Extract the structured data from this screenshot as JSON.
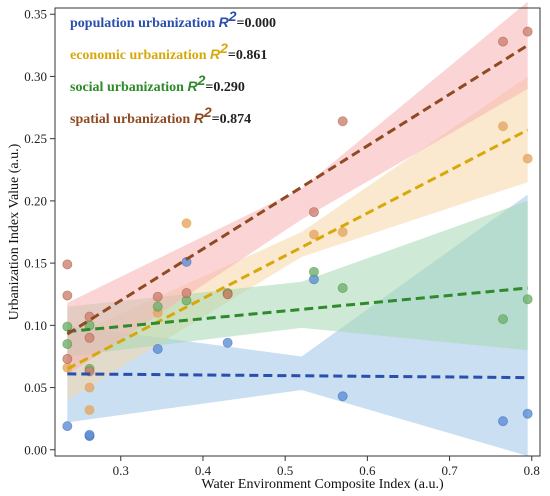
{
  "chart_data": {
    "type": "scatter",
    "title": "",
    "xlabel": "Water Environment Composite Index (a.u.)",
    "ylabel": "Urbanization Index Value (a.u.)",
    "xlim": [
      0.22,
      0.81
    ],
    "ylim": [
      -0.005,
      0.355
    ],
    "xticks": [
      "0.3",
      "0.4",
      "0.5",
      "0.6",
      "0.7",
      "0.8"
    ],
    "yticks": [
      "0.00",
      "0.05",
      "0.10",
      "0.15",
      "0.20",
      "0.25",
      "0.30",
      "0.35"
    ],
    "legend_position": "top-left",
    "series": [
      {
        "name": "population urbanization",
        "r2_label": "R",
        "r2_sup": "2",
        "r2_value": "=0.000",
        "color": "#2a4fae",
        "point_color": "#5b8fd6",
        "band_color": "#9ec5e8",
        "fit": [
          [
            0.235,
            0.061
          ],
          [
            0.795,
            0.058
          ]
        ],
        "band": {
          "x": [
            0.235,
            0.52,
            0.795
          ],
          "lower": [
            0.022,
            0.048,
            -0.005
          ],
          "upper": [
            0.1,
            0.075,
            0.205
          ]
        },
        "points": [
          [
            0.235,
            0.019
          ],
          [
            0.262,
            0.011
          ],
          [
            0.262,
            0.012
          ],
          [
            0.345,
            0.081
          ],
          [
            0.38,
            0.151
          ],
          [
            0.43,
            0.086
          ],
          [
            0.535,
            0.137
          ],
          [
            0.57,
            0.043
          ],
          [
            0.765,
            0.023
          ],
          [
            0.795,
            0.029
          ]
        ]
      },
      {
        "name": "economic urbanization",
        "r2_label": "R",
        "r2_sup": "2",
        "r2_value": "=0.861",
        "color": "#d7a80a",
        "point_color": "#e7a46a",
        "band_color": "#f5d7a8",
        "fit": [
          [
            0.235,
            0.065
          ],
          [
            0.795,
            0.257
          ]
        ],
        "band": {
          "x": [
            0.235,
            0.52,
            0.795
          ],
          "lower": [
            0.04,
            0.155,
            0.215
          ],
          "upper": [
            0.09,
            0.175,
            0.3
          ]
        },
        "points": [
          [
            0.235,
            0.066
          ],
          [
            0.262,
            0.032
          ],
          [
            0.262,
            0.05
          ],
          [
            0.345,
            0.11
          ],
          [
            0.38,
            0.182
          ],
          [
            0.43,
            0.125
          ],
          [
            0.535,
            0.173
          ],
          [
            0.57,
            0.175
          ],
          [
            0.765,
            0.26
          ],
          [
            0.795,
            0.234
          ]
        ]
      },
      {
        "name": "social urbanization",
        "r2_label": "R",
        "r2_sup": "2",
        "r2_value": "=0.290",
        "color": "#2e8a2a",
        "point_color": "#6fb06b",
        "band_color": "#a5d9b5",
        "fit": [
          [
            0.235,
            0.095
          ],
          [
            0.795,
            0.13
          ]
        ],
        "band": {
          "x": [
            0.235,
            0.52,
            0.795
          ],
          "lower": [
            0.075,
            0.098,
            0.08
          ],
          "upper": [
            0.115,
            0.135,
            0.2
          ]
        },
        "points": [
          [
            0.235,
            0.099
          ],
          [
            0.235,
            0.085
          ],
          [
            0.262,
            0.065
          ],
          [
            0.262,
            0.1
          ],
          [
            0.345,
            0.115
          ],
          [
            0.38,
            0.12
          ],
          [
            0.43,
            0.126
          ],
          [
            0.535,
            0.143
          ],
          [
            0.57,
            0.13
          ],
          [
            0.765,
            0.105
          ],
          [
            0.795,
            0.121
          ]
        ]
      },
      {
        "name": "spatial urbanization",
        "r2_label": "R",
        "r2_sup": "2",
        "r2_value": "=0.874",
        "color": "#8f4a22",
        "point_color": "#d08070",
        "band_color": "#f7b3b3",
        "fit": [
          [
            0.235,
            0.093
          ],
          [
            0.795,
            0.325
          ]
        ],
        "band": {
          "x": [
            0.235,
            0.52,
            0.795
          ],
          "lower": [
            0.06,
            0.185,
            0.29
          ],
          "upper": [
            0.118,
            0.21,
            0.36
          ]
        },
        "points": [
          [
            0.235,
            0.149
          ],
          [
            0.235,
            0.124
          ],
          [
            0.235,
            0.073
          ],
          [
            0.262,
            0.107
          ],
          [
            0.262,
            0.09
          ],
          [
            0.262,
            0.063
          ],
          [
            0.345,
            0.123
          ],
          [
            0.38,
            0.126
          ],
          [
            0.43,
            0.125
          ],
          [
            0.535,
            0.191
          ],
          [
            0.57,
            0.264
          ],
          [
            0.765,
            0.328
          ],
          [
            0.795,
            0.336
          ]
        ]
      }
    ]
  }
}
